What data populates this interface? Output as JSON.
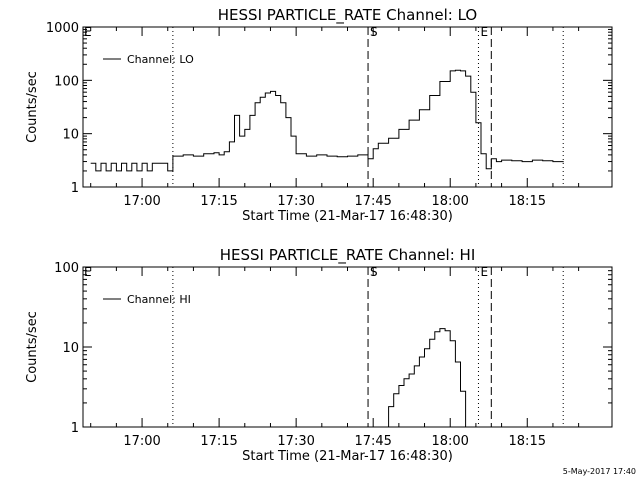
{
  "footer": {
    "timestamp": "5-May-2017 17:40"
  },
  "chart_data": [
    {
      "type": "line",
      "title": "HESSI PARTICLE_RATE Channel: LO",
      "xlabel": "Start Time (21-Mar-17 16:48:30)",
      "ylabel": "Counts/sec",
      "scale_y": "log",
      "xlim": [
        "16:48:30",
        "18:31:30"
      ],
      "ylim": [
        1,
        1000
      ],
      "x_ticks": [
        "17:00",
        "17:15",
        "17:30",
        "17:45",
        "18:00",
        "18:15"
      ],
      "y_ticks": [
        {
          "value": 1,
          "label": "1"
        },
        {
          "value": 10,
          "label": "10"
        },
        {
          "value": 100,
          "label": "100"
        },
        {
          "value": 1000,
          "label": "1000"
        }
      ],
      "legend": {
        "position": "top-left",
        "entries": [
          "Channel: LO"
        ]
      },
      "markers": [
        {
          "time": "17:06:00",
          "style": "dotted",
          "label": ""
        },
        {
          "time": "17:44:00",
          "style": "dashed",
          "label": "S"
        },
        {
          "time": "18:05:30",
          "style": "dotted",
          "label": "E"
        },
        {
          "time": "18:08:00",
          "style": "dashed",
          "label": ""
        },
        {
          "time": "18:22:00",
          "style": "dotted",
          "label": ""
        }
      ],
      "edge_label": "E",
      "series": [
        {
          "name": "Channel: LO",
          "x": [
            "16:50:00",
            "16:51:00",
            "16:52:00",
            "16:53:00",
            "16:54:00",
            "16:55:00",
            "16:56:00",
            "16:57:00",
            "16:58:00",
            "16:59:00",
            "17:00:00",
            "17:01:00",
            "17:02:00",
            "17:03:00",
            "17:04:00",
            "17:05:00",
            "17:06:00",
            "17:08:00",
            "17:10:00",
            "17:12:00",
            "17:14:00",
            "17:15:00",
            "17:16:00",
            "17:17:00",
            "17:18:00",
            "17:19:00",
            "17:20:00",
            "17:21:00",
            "17:22:00",
            "17:23:00",
            "17:24:00",
            "17:25:00",
            "17:26:00",
            "17:27:00",
            "17:28:00",
            "17:29:00",
            "17:30:00",
            "17:32:00",
            "17:34:00",
            "17:36:00",
            "17:38:00",
            "17:40:00",
            "17:42:00",
            "17:44:00",
            "17:45:00",
            "17:46:00",
            "17:48:00",
            "17:50:00",
            "17:52:00",
            "17:54:00",
            "17:56:00",
            "17:58:00",
            "18:00:00",
            "18:01:00",
            "18:02:00",
            "18:03:00",
            "18:04:00",
            "18:05:00",
            "18:06:00",
            "18:07:00",
            "18:08:00",
            "18:09:00",
            "18:10:00",
            "18:12:00",
            "18:14:00",
            "18:16:00",
            "18:18:00",
            "18:20:00",
            "18:22:00"
          ],
          "y": [
            2.8,
            2.0,
            2.8,
            2.0,
            2.8,
            2.0,
            2.8,
            2.0,
            2.8,
            2.0,
            2.8,
            2.0,
            2.8,
            2.8,
            2.8,
            2.0,
            3.8,
            4.0,
            3.8,
            4.2,
            4.4,
            4.0,
            4.6,
            7.0,
            22,
            9,
            12,
            22,
            38,
            48,
            58,
            62,
            52,
            38,
            20,
            9,
            4.2,
            3.8,
            4.0,
            3.8,
            3.7,
            3.8,
            4.0,
            3.4,
            5.2,
            6.6,
            8.2,
            12,
            18,
            28,
            52,
            95,
            150,
            155,
            150,
            120,
            60,
            16,
            4.2,
            2.2,
            3.4,
            3.0,
            3.2,
            3.1,
            3.0,
            3.2,
            3.1,
            3.0,
            2.9
          ]
        }
      ]
    },
    {
      "type": "line",
      "title": "HESSI PARTICLE_RATE Channel: HI",
      "xlabel": "Start Time (21-Mar-17 16:48:30)",
      "ylabel": "Counts/sec",
      "scale_y": "log",
      "xlim": [
        "16:48:30",
        "18:31:30"
      ],
      "ylim": [
        1,
        100
      ],
      "x_ticks": [
        "17:00",
        "17:15",
        "17:30",
        "17:45",
        "18:00",
        "18:15"
      ],
      "y_ticks": [
        {
          "value": 1,
          "label": "1"
        },
        {
          "value": 10,
          "label": "10"
        },
        {
          "value": 100,
          "label": "100"
        }
      ],
      "legend": {
        "position": "top-left",
        "entries": [
          "Channel: HI"
        ]
      },
      "markers": [
        {
          "time": "17:06:00",
          "style": "dotted",
          "label": ""
        },
        {
          "time": "17:44:00",
          "style": "dashed",
          "label": "S"
        },
        {
          "time": "18:05:30",
          "style": "dotted",
          "label": "E"
        },
        {
          "time": "18:08:00",
          "style": "dashed",
          "label": ""
        },
        {
          "time": "18:22:00",
          "style": "dotted",
          "label": ""
        }
      ],
      "edge_label": "E",
      "series": [
        {
          "name": "Channel: HI",
          "x": [
            "17:47:00",
            "17:48:00",
            "17:49:00",
            "17:50:00",
            "17:51:00",
            "17:52:00",
            "17:53:00",
            "17:54:00",
            "17:55:00",
            "17:56:00",
            "17:57:00",
            "17:58:00",
            "17:59:00",
            "18:00:00",
            "18:01:00",
            "18:02:00",
            "18:03:00"
          ],
          "y": [
            1.0,
            1.8,
            2.6,
            3.3,
            4.0,
            4.6,
            5.8,
            7.5,
            9.5,
            12.5,
            15.5,
            17,
            16,
            12,
            6.5,
            2.8,
            1.0
          ]
        }
      ]
    }
  ]
}
